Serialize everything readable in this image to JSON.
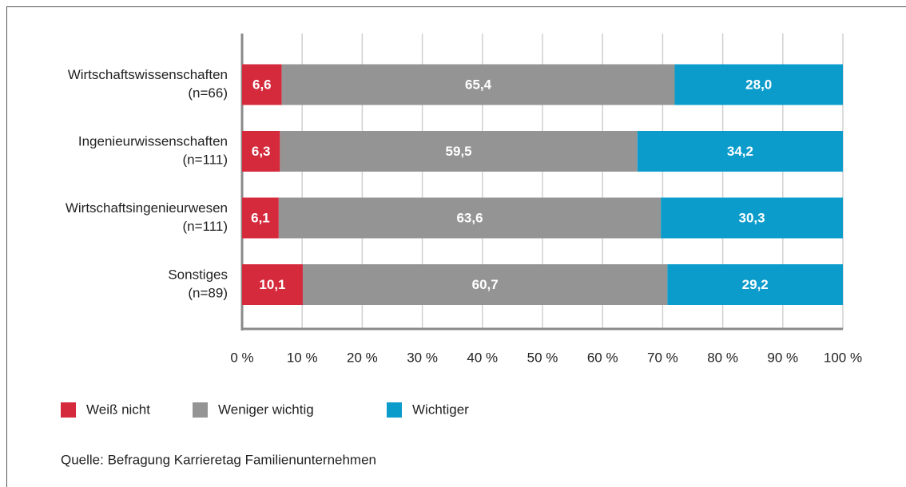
{
  "chart_data": {
    "type": "stacked-bar-horizontal",
    "categories": [
      [
        "Wirtschaftswissenschaften",
        "(n=66)"
      ],
      [
        "Ingenieurwissenschaften",
        "(n=111)"
      ],
      [
        "Wirtschaftsingenieurwesen",
        "(n=111)"
      ],
      [
        "Sonstiges",
        "(n=89)"
      ]
    ],
    "series": [
      {
        "name": "Weiß nicht",
        "color": "#d52a3c",
        "values": [
          6.6,
          6.3,
          6.1,
          10.1
        ],
        "value_labels": [
          "6,6",
          "6,3",
          "6,1",
          "10,1"
        ]
      },
      {
        "name": "Weniger wichtig",
        "color": "#949494",
        "values": [
          65.4,
          59.5,
          63.6,
          60.7
        ],
        "value_labels": [
          "65,4",
          "59,5",
          "63,6",
          "60,7"
        ]
      },
      {
        "name": "Wichtiger",
        "color": "#0b9ccc",
        "values": [
          28.0,
          34.2,
          30.3,
          29.2
        ],
        "value_labels": [
          "28,0",
          "34,2",
          "30,3",
          "29,2"
        ]
      }
    ],
    "xlim": [
      0,
      100
    ],
    "xticks": [
      {
        "value": 0,
        "label": "0 %"
      },
      {
        "value": 10,
        "label": "10 %"
      },
      {
        "value": 20,
        "label": "20 %"
      },
      {
        "value": 30,
        "label": "30 %"
      },
      {
        "value": 40,
        "label": "40 %"
      },
      {
        "value": 50,
        "label": "50 %"
      },
      {
        "value": 60,
        "label": "60 %"
      },
      {
        "value": 70,
        "label": "70 %"
      },
      {
        "value": 80,
        "label": "80 %"
      },
      {
        "value": 90,
        "label": "90 %"
      },
      {
        "value": 100,
        "label": "100 %"
      }
    ],
    "grid": true,
    "source": "Quelle: Befragung Karrieretag Familienunternehmen"
  }
}
